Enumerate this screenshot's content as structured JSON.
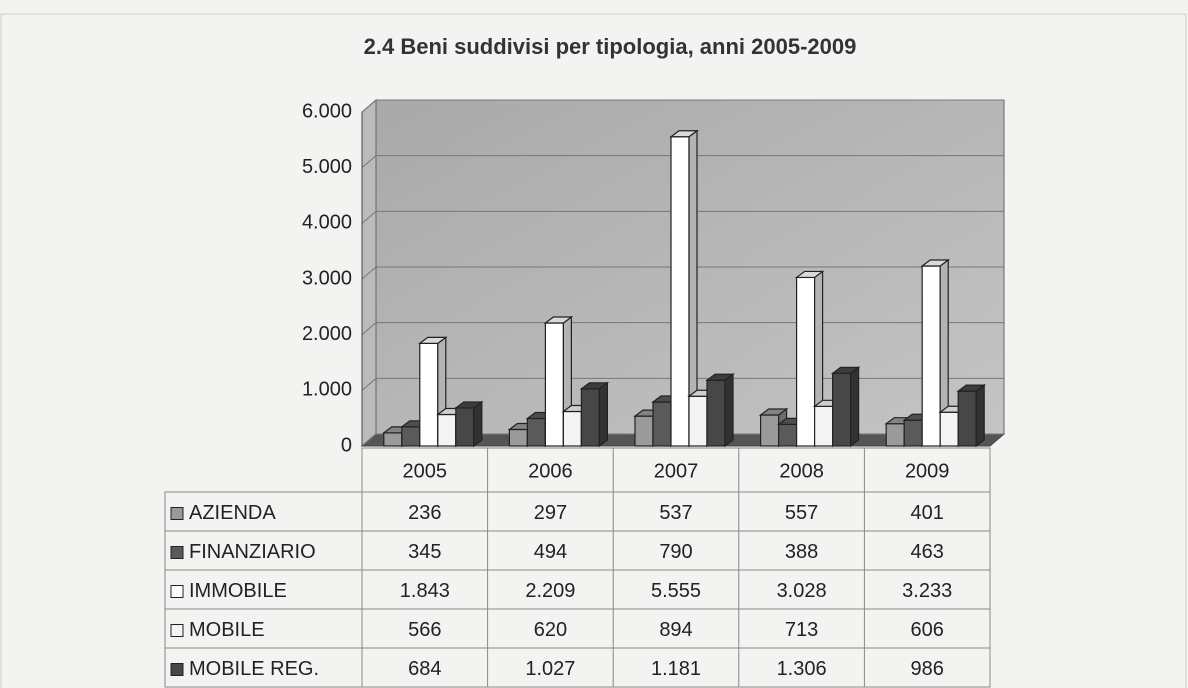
{
  "chart_data": {
    "type": "bar",
    "title": "2.4 Beni suddivisi per tipologia, anni 2005-2009",
    "categories": [
      "2005",
      "2006",
      "2007",
      "2008",
      "2009"
    ],
    "series": [
      {
        "name": "AZIENDA",
        "color": "#9a9a9a",
        "values": [
          236,
          297,
          537,
          557,
          401
        ]
      },
      {
        "name": "FINANZIARIO",
        "color": "#5a5a5a",
        "values": [
          345,
          494,
          790,
          388,
          463
        ]
      },
      {
        "name": "IMMOBILE",
        "color": "#ffffff",
        "values": [
          1843,
          2209,
          5555,
          3028,
          3233
        ],
        "value_labels": [
          "1.843",
          "2.209",
          "5.555",
          "3.028",
          "3.233"
        ]
      },
      {
        "name": "MOBILE",
        "color": "#f4f4f4",
        "values": [
          566,
          620,
          894,
          713,
          606
        ]
      },
      {
        "name": "MOBILE REG.",
        "color": "#474747",
        "values": [
          684,
          1027,
          1181,
          1306,
          986
        ],
        "value_labels": [
          "684",
          "1.027",
          "1.181",
          "1.306",
          "986"
        ]
      }
    ],
    "ylim": [
      0,
      6000
    ],
    "yticks": [
      0,
      {
        "value": 1000,
        "label": "1.000"
      },
      {
        "value": 2000,
        "label": "2.000"
      },
      {
        "value": 3000,
        "label": "3.000"
      },
      {
        "value": 4000,
        "label": "4.000"
      },
      {
        "value": 5000,
        "label": "5.000"
      },
      {
        "value": 6000,
        "label": "6.000"
      }
    ],
    "grid": true
  }
}
